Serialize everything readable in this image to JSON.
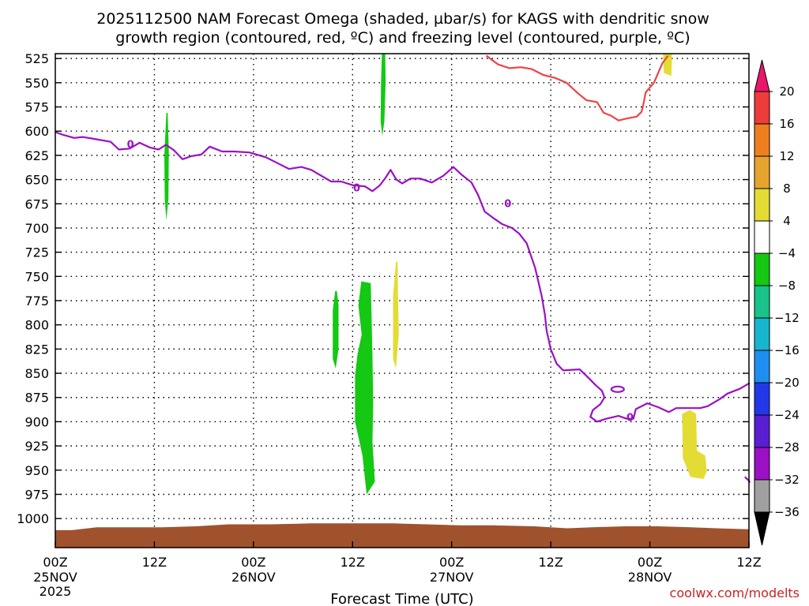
{
  "chart_data": {
    "type": "contour",
    "title_line1": "2025112500 NAM Forecast Omega (shaded, µbar/s) for KAGS with dendritic snow",
    "title_line2": "growth region (contoured, red, ºC) and freezing level (contoured, purple, ºC)",
    "xlabel": "Forecast Time (UTC)",
    "watermark": "coolwx.com/modelts",
    "x_hours_range": [
      0,
      84
    ],
    "ylim": [
      1030,
      520
    ],
    "y_ticks": [
      525,
      550,
      575,
      600,
      625,
      650,
      675,
      700,
      725,
      750,
      775,
      800,
      825,
      850,
      875,
      900,
      925,
      950,
      975,
      1000
    ],
    "x_ticks": [
      {
        "h": 0,
        "hr": "00Z",
        "day": "25NOV",
        "year": "2025"
      },
      {
        "h": 12,
        "hr": "12Z",
        "day": "",
        "year": ""
      },
      {
        "h": 24,
        "hr": "00Z",
        "day": "26NOV",
        "year": ""
      },
      {
        "h": 36,
        "hr": "12Z",
        "day": "",
        "year": ""
      },
      {
        "h": 48,
        "hr": "00Z",
        "day": "27NOV",
        "year": ""
      },
      {
        "h": 60,
        "hr": "12Z",
        "day": "",
        "year": ""
      },
      {
        "h": 72,
        "hr": "00Z",
        "day": "28NOV",
        "year": ""
      },
      {
        "h": 84,
        "hr": "12Z",
        "day": "",
        "year": ""
      }
    ],
    "grid": true,
    "colorbar": {
      "labels": [
        "20",
        "16",
        "12",
        "8",
        "4",
        "−4",
        "−8",
        "−12",
        "−16",
        "−20",
        "−24",
        "−28",
        "−32",
        "−36"
      ],
      "colors": [
        "#e8176a",
        "#ee3b3b",
        "#ee7f1e",
        "#e6a42e",
        "#e3dc34",
        "#ffffff",
        "#14c814",
        "#19c389",
        "#17b6cf",
        "#1e8ff0",
        "#2238e8",
        "#5a1ed2",
        "#9b10c4",
        "#a0a0a0",
        "#000000"
      ]
    },
    "freezing_level_contour": {
      "label": "0",
      "color": "#9b10c4",
      "points": [
        [
          0,
          601
        ],
        [
          1,
          604
        ],
        [
          2.3,
          607
        ],
        [
          3.3,
          606
        ],
        [
          4.7,
          608
        ],
        [
          6.7,
          611
        ],
        [
          7.7,
          619
        ],
        [
          9,
          618
        ],
        [
          10.2,
          612
        ],
        [
          11.5,
          617
        ],
        [
          12.5,
          619
        ],
        [
          13.4,
          614
        ],
        [
          14.4,
          620
        ],
        [
          15.4,
          629
        ],
        [
          16.4,
          626
        ],
        [
          17.7,
          624
        ],
        [
          18.7,
          616
        ],
        [
          20.2,
          621
        ],
        [
          21.6,
          621
        ],
        [
          23.5,
          622
        ],
        [
          25.5,
          627
        ],
        [
          26.9,
          633
        ],
        [
          28.3,
          639
        ],
        [
          29.8,
          637
        ],
        [
          31,
          640
        ],
        [
          32.2,
          646
        ],
        [
          33.4,
          652
        ],
        [
          34.6,
          652
        ],
        [
          36.1,
          656
        ],
        [
          37.5,
          657
        ],
        [
          38.4,
          662
        ],
        [
          39.3,
          656
        ],
        [
          40,
          648
        ],
        [
          40.6,
          640
        ],
        [
          41.3,
          650
        ],
        [
          42,
          654
        ],
        [
          43,
          649
        ],
        [
          44.2,
          649
        ],
        [
          45.6,
          653
        ],
        [
          47,
          646
        ],
        [
          48.2,
          637
        ],
        [
          49.2,
          645
        ],
        [
          50.4,
          653
        ],
        [
          51.2,
          666
        ],
        [
          52,
          683
        ],
        [
          53.1,
          690
        ],
        [
          54.1,
          696
        ],
        [
          55.3,
          700
        ],
        [
          56.2,
          706
        ],
        [
          57.1,
          716
        ],
        [
          58.1,
          741
        ],
        [
          58.9,
          770
        ],
        [
          59.3,
          790
        ],
        [
          59.5,
          806
        ],
        [
          60,
          825
        ],
        [
          60.7,
          840
        ],
        [
          61.5,
          847
        ],
        [
          63.5,
          846
        ],
        [
          64.6,
          855
        ],
        [
          65.4,
          862
        ],
        [
          66.2,
          868
        ],
        [
          66.5,
          875
        ],
        [
          66,
          882
        ],
        [
          65.1,
          888
        ],
        [
          64.8,
          895
        ],
        [
          65.6,
          900
        ],
        [
          66.7,
          897
        ],
        [
          68.2,
          894
        ],
        [
          69.2,
          897
        ],
        [
          70,
          897
        ],
        [
          70.3,
          887
        ],
        [
          71.7,
          881
        ],
        [
          73,
          885
        ],
        [
          74.3,
          890
        ],
        [
          75.2,
          886
        ],
        [
          78.1,
          886
        ],
        [
          79,
          884
        ],
        [
          80.4,
          877
        ],
        [
          81.4,
          871
        ],
        [
          82.9,
          866
        ],
        [
          84.1,
          860
        ]
      ]
    },
    "dgz_contour": {
      "color": "#ee4444",
      "points": [
        [
          52.2,
          522
        ],
        [
          53.6,
          531
        ],
        [
          55,
          535
        ],
        [
          56.4,
          534
        ],
        [
          57.7,
          536
        ],
        [
          59.1,
          542
        ],
        [
          60.5,
          545
        ],
        [
          61.9,
          550
        ],
        [
          63.3,
          561
        ],
        [
          64.3,
          568
        ],
        [
          65.6,
          570
        ],
        [
          66.4,
          581
        ],
        [
          67.3,
          584
        ],
        [
          68.2,
          589
        ],
        [
          69.2,
          587
        ],
        [
          70.4,
          585
        ],
        [
          71,
          580
        ],
        [
          71.2,
          573
        ],
        [
          71.5,
          560
        ],
        [
          72.5,
          550
        ],
        [
          73.5,
          530
        ],
        [
          74.2,
          522
        ]
      ]
    },
    "omega_regions": [
      {
        "value": -6,
        "color": "#14c814",
        "points": [
          [
            13.45,
            581
          ],
          [
            13.2,
            625
          ],
          [
            13.25,
            670
          ],
          [
            13.45,
            692
          ],
          [
            13.7,
            670
          ],
          [
            13.75,
            620
          ],
          [
            13.6,
            581
          ]
        ]
      },
      {
        "value": -6,
        "color": "#14c814",
        "points": [
          [
            39.55,
            520
          ],
          [
            39.45,
            550
          ],
          [
            39.4,
            590
          ],
          [
            39.6,
            605
          ],
          [
            39.85,
            590
          ],
          [
            40,
            550
          ],
          [
            39.95,
            520
          ]
        ]
      },
      {
        "value": -6,
        "color": "#14c814",
        "points": [
          [
            33.9,
            765
          ],
          [
            33.6,
            785
          ],
          [
            33.6,
            835
          ],
          [
            33.95,
            845
          ],
          [
            34.3,
            825
          ],
          [
            34.3,
            780
          ],
          [
            34.1,
            765
          ]
        ]
      },
      {
        "value": -6,
        "color": "#14c814",
        "points": [
          [
            37.05,
            755
          ],
          [
            36.7,
            780
          ],
          [
            37.1,
            810
          ],
          [
            36.6,
            830
          ],
          [
            36.3,
            852
          ],
          [
            36.3,
            900
          ],
          [
            37.2,
            935
          ],
          [
            37.7,
            975
          ],
          [
            38.7,
            962
          ],
          [
            38.4,
            920
          ],
          [
            38.5,
            880
          ],
          [
            38.4,
            830
          ],
          [
            38.3,
            790
          ],
          [
            38.2,
            757
          ]
        ]
      },
      {
        "value": 6,
        "color": "#e3dc34",
        "points": [
          [
            41.25,
            735
          ],
          [
            40.9,
            770
          ],
          [
            40.9,
            835
          ],
          [
            41.25,
            845
          ],
          [
            41.6,
            810
          ],
          [
            41.5,
            770
          ],
          [
            41.45,
            735
          ]
        ]
      },
      {
        "value": 6,
        "color": "#e3dc34",
        "points": [
          [
            73.6,
            520
          ],
          [
            73.7,
            540
          ],
          [
            74.6,
            543
          ],
          [
            74.7,
            520
          ]
        ]
      },
      {
        "value": 6,
        "color": "#e3dc34",
        "points": [
          [
            75.9,
            892
          ],
          [
            76,
            938
          ],
          [
            76.4,
            946
          ],
          [
            76.9,
            957
          ],
          [
            78.5,
            959
          ],
          [
            78.9,
            951
          ],
          [
            78.7,
            935
          ],
          [
            77.7,
            930
          ],
          [
            77.6,
            892
          ],
          [
            76.9,
            888
          ],
          [
            76.8,
            888
          ]
        ]
      }
    ],
    "terrain": {
      "color": "#a0522d",
      "points": [
        [
          0,
          1012
        ],
        [
          2,
          1012
        ],
        [
          5,
          1009
        ],
        [
          9,
          1009
        ],
        [
          13,
          1009
        ],
        [
          17,
          1008
        ],
        [
          21,
          1006
        ],
        [
          26,
          1006
        ],
        [
          31,
          1005
        ],
        [
          36,
          1005
        ],
        [
          41,
          1005
        ],
        [
          45,
          1006
        ],
        [
          49,
          1007
        ],
        [
          53,
          1007
        ],
        [
          58,
          1008
        ],
        [
          62,
          1010
        ],
        [
          65,
          1009
        ],
        [
          69,
          1008
        ],
        [
          73,
          1008
        ],
        [
          77,
          1009
        ],
        [
          80,
          1010
        ],
        [
          84,
          1011
        ]
      ]
    }
  }
}
